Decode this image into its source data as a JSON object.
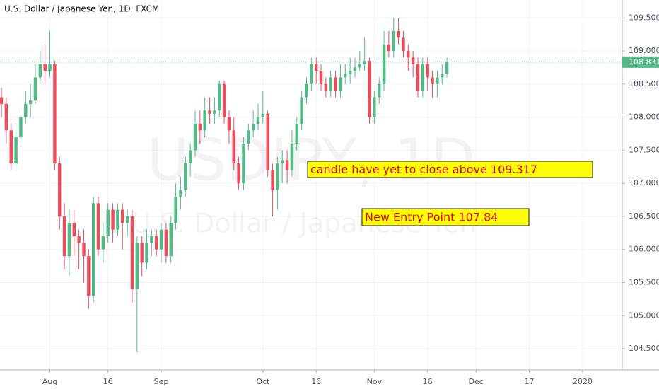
{
  "chart_data": {
    "type": "candlestick",
    "title": "U.S. Dollar / Japanese Yen, 1D, FXCM",
    "watermark": "USDJPY, 1D",
    "watermark_subtitle": "U.S. Dollar / Japanese Yen",
    "up_color": "#53b987",
    "down_color": "#eb4d5c",
    "grid": true,
    "last_price": 108.831,
    "annotations": [
      "candle have yet to close above 109.317",
      "New Entry Point 107.84"
    ],
    "open": [
      108.3,
      108.2,
      107.8,
      107.3,
      107.7,
      108.0,
      108.2,
      108.25,
      108.6,
      108.8,
      108.7,
      108.8,
      107.3,
      106.5,
      105.9,
      106.4,
      106.2,
      106.1,
      105.9,
      105.3,
      106.7,
      106.0,
      106.2,
      106.6,
      106.3,
      106.6,
      106.4,
      106.5,
      105.4,
      106.1,
      105.8,
      106.1,
      106.2,
      106.0,
      106.3,
      105.9,
      106.4,
      106.8,
      106.9,
      107.3,
      107.5,
      107.9,
      107.8,
      108.1,
      108.05,
      108.1,
      108.5,
      108.0,
      107.8,
      107.3,
      107.0,
      107.6,
      107.8,
      107.9,
      108.0,
      108.05,
      107.2,
      106.9,
      107.3,
      107.35,
      107.2,
      107.6,
      107.9,
      108.3,
      108.5,
      108.8,
      108.7,
      108.5,
      108.4,
      108.6,
      108.4,
      108.6,
      108.65,
      108.7,
      108.75,
      108.8,
      108.85,
      108.0,
      108.3,
      108.5,
      109.1,
      109.0,
      109.3,
      109.2,
      109.0,
      108.9,
      108.8,
      108.4,
      108.8,
      108.6,
      108.5,
      108.6,
      108.65
    ],
    "high": [
      108.45,
      108.3,
      107.9,
      107.9,
      108.1,
      108.4,
      108.5,
      108.8,
      109.0,
      109.1,
      109.3,
      108.85,
      107.4,
      106.7,
      106.6,
      106.6,
      106.3,
      106.3,
      106.0,
      106.8,
      106.8,
      106.4,
      106.7,
      106.7,
      106.7,
      106.7,
      106.6,
      106.6,
      106.2,
      106.2,
      106.3,
      106.3,
      106.3,
      106.4,
      106.4,
      106.5,
      107.0,
      107.1,
      107.4,
      107.6,
      108.1,
      108.1,
      108.3,
      108.3,
      108.3,
      108.55,
      108.55,
      108.1,
      108.0,
      107.4,
      107.7,
      107.9,
      108.1,
      108.2,
      108.4,
      108.1,
      107.3,
      107.4,
      107.5,
      107.5,
      107.8,
      108.0,
      108.4,
      108.6,
      108.9,
      108.9,
      108.8,
      108.6,
      108.7,
      108.7,
      108.8,
      108.8,
      108.9,
      108.9,
      109.0,
      109.2,
      108.9,
      108.4,
      108.6,
      109.3,
      109.3,
      109.5,
      109.5,
      109.3,
      109.1,
      109.0,
      108.9,
      108.9,
      108.9,
      108.7,
      108.7,
      108.8,
      108.9
    ],
    "low": [
      108.0,
      107.6,
      107.2,
      107.2,
      107.6,
      107.9,
      108.0,
      108.2,
      108.5,
      108.5,
      108.6,
      107.2,
      106.3,
      105.7,
      105.6,
      105.9,
      105.7,
      105.5,
      105.1,
      105.2,
      105.9,
      105.8,
      106.1,
      106.1,
      106.2,
      106.0,
      106.2,
      105.2,
      104.45,
      105.6,
      105.7,
      105.9,
      105.9,
      105.8,
      105.8,
      105.8,
      106.3,
      106.6,
      106.8,
      107.1,
      107.4,
      107.6,
      107.7,
      107.9,
      107.9,
      108.0,
      107.9,
      107.6,
      107.2,
      106.9,
      106.9,
      107.5,
      107.7,
      107.8,
      107.9,
      107.1,
      106.5,
      106.6,
      107.0,
      107.0,
      107.1,
      107.5,
      107.8,
      108.2,
      108.4,
      108.5,
      108.4,
      108.3,
      108.3,
      108.3,
      108.3,
      108.5,
      108.5,
      108.6,
      108.7,
      108.7,
      107.9,
      107.9,
      108.2,
      108.4,
      108.9,
      108.9,
      109.1,
      108.9,
      108.7,
      108.6,
      108.3,
      108.3,
      108.4,
      108.3,
      108.3,
      108.5,
      108.6
    ],
    "close": [
      108.2,
      107.8,
      107.3,
      107.7,
      108.0,
      108.2,
      108.25,
      108.6,
      108.8,
      108.7,
      108.8,
      107.3,
      106.5,
      105.9,
      106.4,
      106.2,
      106.1,
      105.9,
      105.3,
      106.7,
      106.0,
      106.2,
      106.6,
      106.3,
      106.6,
      106.4,
      106.5,
      105.4,
      106.1,
      105.8,
      106.1,
      106.2,
      106.0,
      106.3,
      105.9,
      106.4,
      106.8,
      106.9,
      107.3,
      107.5,
      107.9,
      107.8,
      108.1,
      108.05,
      108.1,
      108.5,
      108.0,
      107.8,
      107.3,
      107.0,
      107.6,
      107.8,
      107.9,
      108.0,
      108.05,
      107.2,
      106.9,
      107.3,
      107.35,
      107.2,
      107.6,
      107.9,
      108.3,
      108.5,
      108.8,
      108.7,
      108.5,
      108.4,
      108.6,
      108.4,
      108.6,
      108.65,
      108.7,
      108.75,
      108.8,
      108.85,
      108.0,
      108.3,
      108.5,
      109.1,
      109.0,
      109.3,
      109.2,
      109.0,
      108.9,
      108.8,
      108.4,
      108.8,
      108.6,
      108.5,
      108.6,
      108.65,
      108.831
    ],
    "xlim": [
      -0.3,
      128.2
    ],
    "xticks": [
      {
        "value": 10,
        "label": "Aug"
      },
      {
        "value": 22,
        "label": "16"
      },
      {
        "value": 33,
        "label": "Sep"
      },
      {
        "value": 54,
        "label": "Oct"
      },
      {
        "value": 65,
        "label": "16"
      },
      {
        "value": 77,
        "label": "Nov"
      },
      {
        "value": 88,
        "label": "16"
      },
      {
        "value": 98,
        "label": "Dec"
      },
      {
        "value": 109,
        "label": "17"
      },
      {
        "value": 120,
        "label": "2020"
      }
    ],
    "ylim": [
      104.18,
      109.77
    ],
    "yticks": [
      {
        "value": 104.5,
        "label": "104.500"
      },
      {
        "value": 105,
        "label": "105.000"
      },
      {
        "value": 105.5,
        "label": "105.500"
      },
      {
        "value": 106,
        "label": "106.000"
      },
      {
        "value": 106.5,
        "label": "106.500"
      },
      {
        "value": 107,
        "label": "107.000"
      },
      {
        "value": 107.5,
        "label": "107.500"
      },
      {
        "value": 108,
        "label": "108.000"
      },
      {
        "value": 108.5,
        "label": "108.500"
      },
      {
        "value": 109,
        "label": "109.000"
      },
      {
        "value": 109.5,
        "label": "109.500"
      }
    ]
  }
}
